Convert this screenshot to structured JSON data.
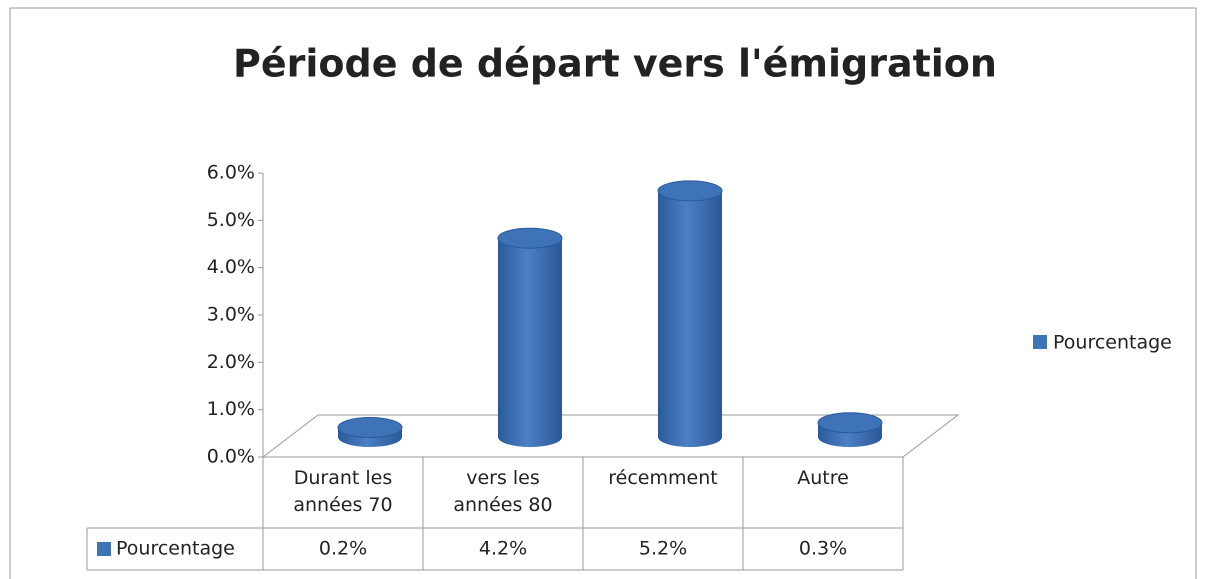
{
  "chart_data": {
    "type": "cylinder",
    "title": "Période de départ vers l'émigration",
    "categories": [
      "Durant les années 70",
      "vers les années 80",
      "récemment",
      "Autre"
    ],
    "series": [
      {
        "name": "Pourcentage",
        "color": "#3f73b8",
        "values": [
          0.2,
          4.2,
          5.2,
          0.3
        ],
        "value_labels": [
          "0.2%",
          "4.2%",
          "5.2%",
          "0.3%"
        ]
      }
    ],
    "ylim": [
      0,
      6
    ],
    "yticks": [
      {
        "value": 0,
        "label": "0.0%"
      },
      {
        "value": 1,
        "label": "1.0%"
      },
      {
        "value": 2,
        "label": "2.0%"
      },
      {
        "value": 3,
        "label": "3.0%"
      },
      {
        "value": 4,
        "label": "4.0%"
      },
      {
        "value": 5,
        "label": "5.0%"
      },
      {
        "value": 6,
        "label": "6.0%"
      }
    ],
    "legend": "right",
    "data_table": true
  }
}
